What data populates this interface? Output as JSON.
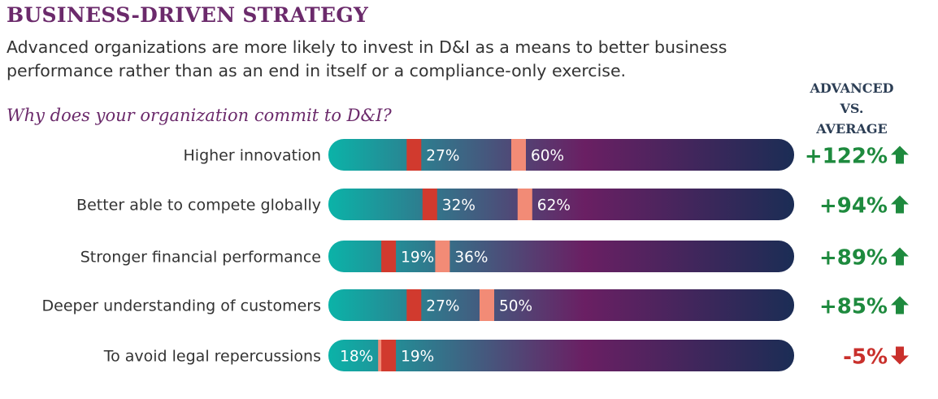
{
  "header": {
    "title": "BUSINESS-DRIVEN STRATEGY",
    "subtitle": "Advanced organizations are more likely to invest in D&I as a means to better business performance rather than as an end in itself or a compliance-only exercise.",
    "question": "Why does your organization commit to D&I?",
    "col_header_lines": [
      "ADVANCED",
      "VS.",
      "AVERAGE"
    ]
  },
  "colors": {
    "bar_start": "#0bb3a8",
    "bar_mid": "#6a1f63",
    "bar_end": "#1b2d55",
    "average_marker": "#d13a2e",
    "advanced_marker": "#f28b76",
    "up": "#1e8a3e",
    "down": "#c9302c"
  },
  "chart_data": {
    "type": "bar",
    "categories": [
      "Higher innovation",
      "Better able to compete globally",
      "Stronger financial performance",
      "Deeper understanding of customers",
      "To avoid legal repercussions"
    ],
    "series": [
      {
        "name": "",
        "values": [
          27,
          32,
          19,
          27,
          19
        ],
        "labels": [
          "27%",
          "32%",
          "19%",
          "27%",
          "19%"
        ]
      },
      {
        "name": "",
        "values": [
          60,
          62,
          36,
          50,
          18
        ],
        "labels": [
          "60%",
          "62%",
          "36%",
          "50%",
          "18%"
        ]
      }
    ],
    "difference": [
      "+122%",
      "+94%",
      "+89%",
      "+85%",
      "-5%"
    ],
    "direction": [
      "up",
      "up",
      "up",
      "up",
      "down"
    ]
  }
}
